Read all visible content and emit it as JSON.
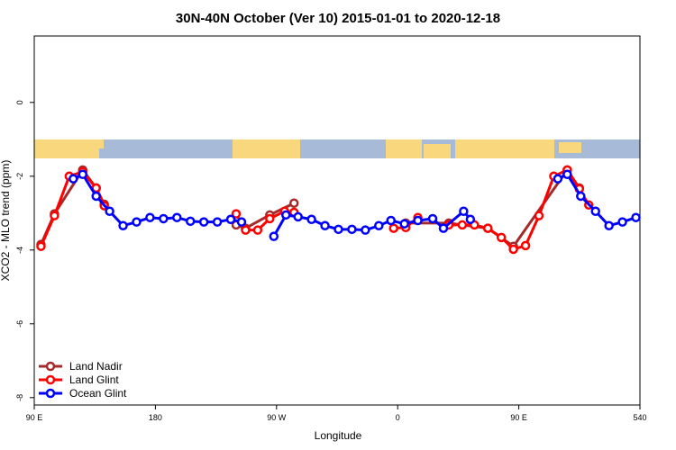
{
  "chart_data": {
    "type": "line",
    "title": "30N-40N October (Ver 10)   2015-01-01 to 2020-12-18",
    "xlabel": "Longitude",
    "ylabel": "XCO2 - MLO trend (ppm)",
    "xlim": [
      90,
      540
    ],
    "ylim": [
      -8.2,
      1.8
    ],
    "xticks": [
      {
        "value": 90,
        "label": "90 E"
      },
      180,
      {
        "value": 270,
        "label": "90 W"
      },
      {
        "value": 360,
        "label": "0"
      },
      {
        "value": 450,
        "label": "90 E"
      },
      540
    ],
    "yticks": [
      0,
      -2,
      -4,
      -6,
      -8
    ],
    "legend": "bottom-left",
    "series": [
      {
        "name": "Land Nadir",
        "color": "#a52a2a",
        "x": [
          95,
          105,
          126,
          136,
          142,
          null,
          240,
          247,
          265,
          283,
          null,
          366,
          398,
          427,
          446,
          486,
          495
        ],
        "values": [
          -3.85,
          -3.02,
          -1.83,
          -2.32,
          -2.76,
          null,
          -3.32,
          -3.41,
          -3.05,
          -2.73,
          null,
          -3.27,
          -3.27,
          -3.41,
          -3.9,
          -1.83,
          -2.32
        ]
      },
      {
        "name": "Land Glint",
        "color": "#ff0000",
        "x": [
          95,
          105,
          116,
          126,
          136,
          142,
          null,
          240,
          247,
          256,
          265,
          276,
          283,
          null,
          357,
          366,
          375,
          null,
          398,
          408,
          417,
          427,
          437,
          446,
          455,
          465,
          476,
          486,
          495,
          502
        ],
        "values": [
          -3.9,
          -3.07,
          -2.0,
          -1.88,
          -2.32,
          -2.8,
          null,
          -3.02,
          -3.46,
          -3.46,
          -3.15,
          -2.95,
          -2.98,
          null,
          -3.41,
          -3.39,
          -3.12,
          null,
          -3.32,
          -3.32,
          -3.32,
          -3.41,
          -3.66,
          -3.98,
          -3.88,
          -3.07,
          -2.0,
          -1.83,
          -2.34,
          -2.78
        ]
      },
      {
        "name": "Ocean Glint",
        "color": "#0000ff",
        "x": [
          119,
          126,
          136,
          146,
          156,
          166,
          176,
          186,
          196,
          206,
          216,
          226,
          236,
          244,
          null,
          268,
          277,
          286,
          296,
          306,
          316,
          326,
          336,
          346,
          355,
          365,
          375,
          386,
          394,
          409,
          414,
          null,
          479,
          486,
          496,
          507,
          517,
          527,
          537
        ],
        "values": [
          -2.07,
          -1.95,
          -2.54,
          -2.95,
          -3.34,
          -3.24,
          -3.12,
          -3.15,
          -3.12,
          -3.22,
          -3.24,
          -3.24,
          -3.17,
          -3.24,
          null,
          -3.63,
          -3.05,
          -3.1,
          -3.17,
          -3.34,
          -3.44,
          -3.44,
          -3.46,
          -3.34,
          -3.2,
          -3.29,
          -3.2,
          -3.15,
          -3.41,
          -2.95,
          -3.17,
          null,
          -2.07,
          -1.95,
          -2.54,
          -2.95,
          -3.34,
          -3.24,
          -3.12
        ]
      }
    ]
  }
}
